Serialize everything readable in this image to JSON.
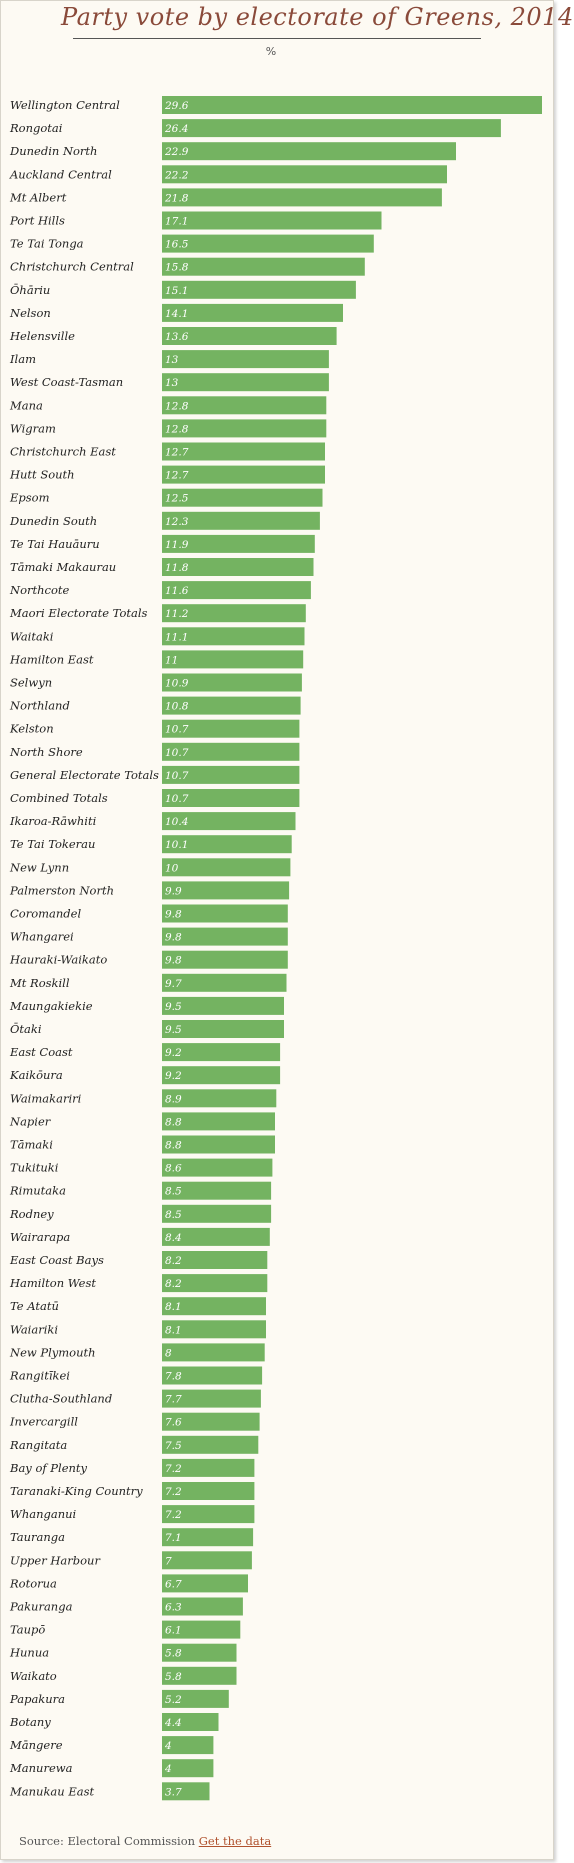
{
  "chart_data": {
    "type": "bar",
    "orientation": "horizontal",
    "title": "Party vote by electorate of Greens, 2014",
    "unit_label": "%",
    "xlim": [
      0,
      29.6
    ],
    "grid": false,
    "legend": "none",
    "bar_color": "#74b361",
    "categories": [
      "Wellington Central",
      "Rongotai",
      "Dunedin North",
      "Auckland Central",
      "Mt Albert",
      "Port Hills",
      "Te Tai Tonga",
      "Christchurch Central",
      "Ōhāriu",
      "Nelson",
      "Helensville",
      "Ilam",
      "West Coast-Tasman",
      "Mana",
      "Wigram",
      "Christchurch East",
      "Hutt South",
      "Epsom",
      "Dunedin South",
      "Te Tai Hauāuru",
      "Tāmaki Makaurau",
      "Northcote",
      "Maori Electorate Totals",
      "Waitaki",
      "Hamilton East",
      "Selwyn",
      "Northland",
      "Kelston",
      "North Shore",
      "General Electorate Totals",
      "Combined Totals",
      "Ikaroa-Rāwhiti",
      "Te Tai Tokerau",
      "New Lynn",
      "Palmerston North",
      "Coromandel",
      "Whangarei",
      "Hauraki-Waikato",
      "Mt Roskill",
      "Maungakiekie",
      "Ōtaki",
      "East Coast",
      "Kaikōura",
      "Waimakariri",
      "Napier",
      "Tāmaki",
      "Tukituki",
      "Rimutaka",
      "Rodney",
      "Wairarapa",
      "East Coast Bays",
      "Hamilton West",
      "Te Atatū",
      "Waiariki",
      "New Plymouth",
      "Rangitīkei",
      "Clutha-Southland",
      "Invercargill",
      "Rangitata",
      "Bay of Plenty",
      "Taranaki-King Country",
      "Whanganui",
      "Tauranga",
      "Upper Harbour",
      "Rotorua",
      "Pakuranga",
      "Taupō",
      "Hunua",
      "Waikato",
      "Papakura",
      "Botany",
      "Māngere",
      "Manurewa",
      "Manukau East"
    ],
    "values": [
      29.6,
      26.4,
      22.9,
      22.2,
      21.8,
      17.1,
      16.5,
      15.8,
      15.1,
      14.1,
      13.6,
      13,
      13,
      12.8,
      12.8,
      12.7,
      12.7,
      12.5,
      12.3,
      11.9,
      11.8,
      11.6,
      11.2,
      11.1,
      11,
      10.9,
      10.8,
      10.7,
      10.7,
      10.7,
      10.7,
      10.4,
      10.1,
      10,
      9.9,
      9.8,
      9.8,
      9.8,
      9.7,
      9.5,
      9.5,
      9.2,
      9.2,
      8.9,
      8.8,
      8.8,
      8.6,
      8.5,
      8.5,
      8.4,
      8.2,
      8.2,
      8.1,
      8.1,
      8,
      7.8,
      7.7,
      7.6,
      7.5,
      7.2,
      7.2,
      7.2,
      7.1,
      7,
      6.7,
      6.3,
      6.1,
      5.8,
      5.8,
      5.2,
      4.4,
      4,
      4,
      3.7
    ]
  },
  "footer": {
    "source_text": "Source: Electoral Commission",
    "link_text": "Get the data"
  }
}
